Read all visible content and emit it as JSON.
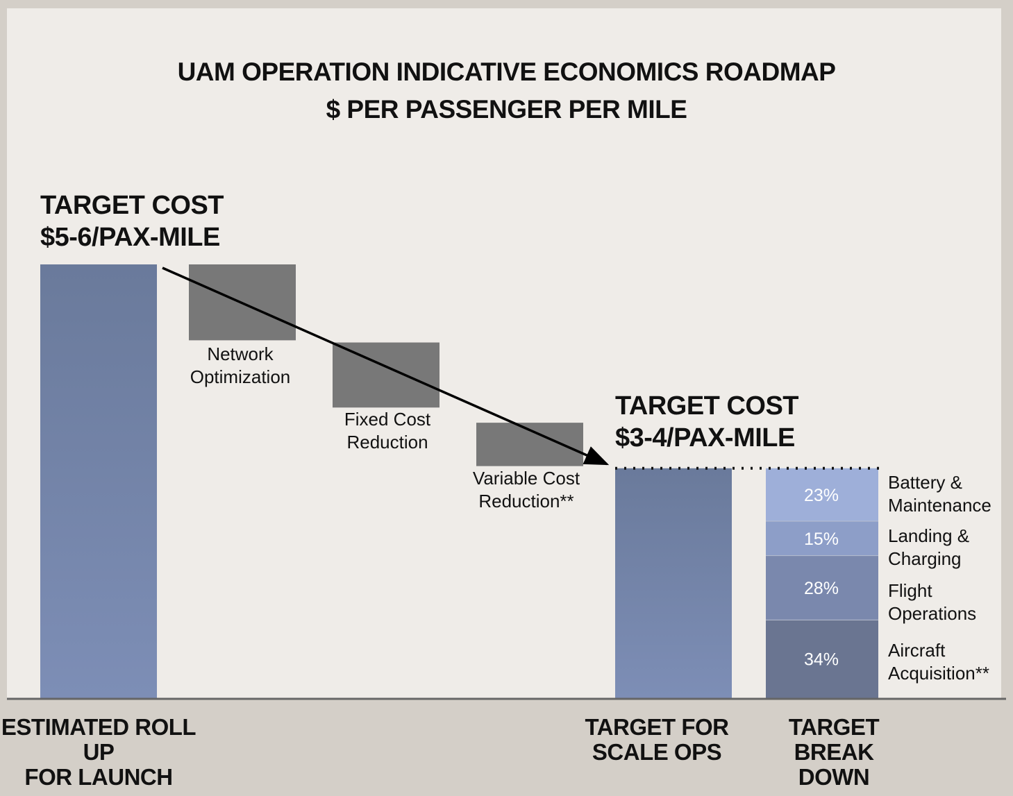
{
  "title_line1": "UAM OPERATION INDICATIVE ECONOMICS ROADMAP",
  "title_line2": "$ PER PASSENGER PER MILE",
  "colors": {
    "blue_bar_top": "#6a7a9b",
    "blue_bar_bottom": "#7d8eb6",
    "step_gray": "#787878",
    "seg_battery": "#9eafd9",
    "seg_landing": "#8d9ec8",
    "seg_flight": "#7a88ad",
    "seg_aircraft": "#6a7591",
    "baseline": "#666666"
  },
  "chart_data": {
    "type": "waterfall",
    "title": "UAM OPERATION INDICATIVE ECONOMICS ROADMAP",
    "subtitle": "$ PER PASSENGER PER MILE",
    "start": {
      "category": "ESTIMATED ROLL\nUP\nFOR LAUNCH",
      "label_line1": "TARGET COST",
      "label_line2": "$5-6/PAX-MILE"
    },
    "steps": [
      {
        "label": "Network\nOptimization",
        "from": 1.0,
        "to": 0.825
      },
      {
        "label": "Fixed Cost\nReduction",
        "from": 0.82,
        "to": 0.67
      },
      {
        "label": "Variable Cost\nReduction**",
        "from": 0.635,
        "to": 0.535
      }
    ],
    "end": {
      "category": "TARGET FOR\nSCALE OPS",
      "label_line1": "TARGET COST",
      "label_line2": "$3-4/PAX-MILE",
      "value": 0.53
    },
    "breakdown": {
      "category": "TARGET\nBREAK\nDOWN",
      "segments": [
        {
          "label": "Aircraft\nAcquisition**",
          "value": 34,
          "text": "34%"
        },
        {
          "label": "Flight\nOperations",
          "value": 28,
          "text": "28%"
        },
        {
          "label": "Landing &\nCharging",
          "value": 15,
          "text": "15%"
        },
        {
          "label": "Battery &\nMaintenance",
          "value": 23,
          "text": "23%"
        }
      ]
    },
    "y_scale": "relative (start bar = 1.0), no axis shown",
    "grid": false,
    "legend": "none"
  }
}
